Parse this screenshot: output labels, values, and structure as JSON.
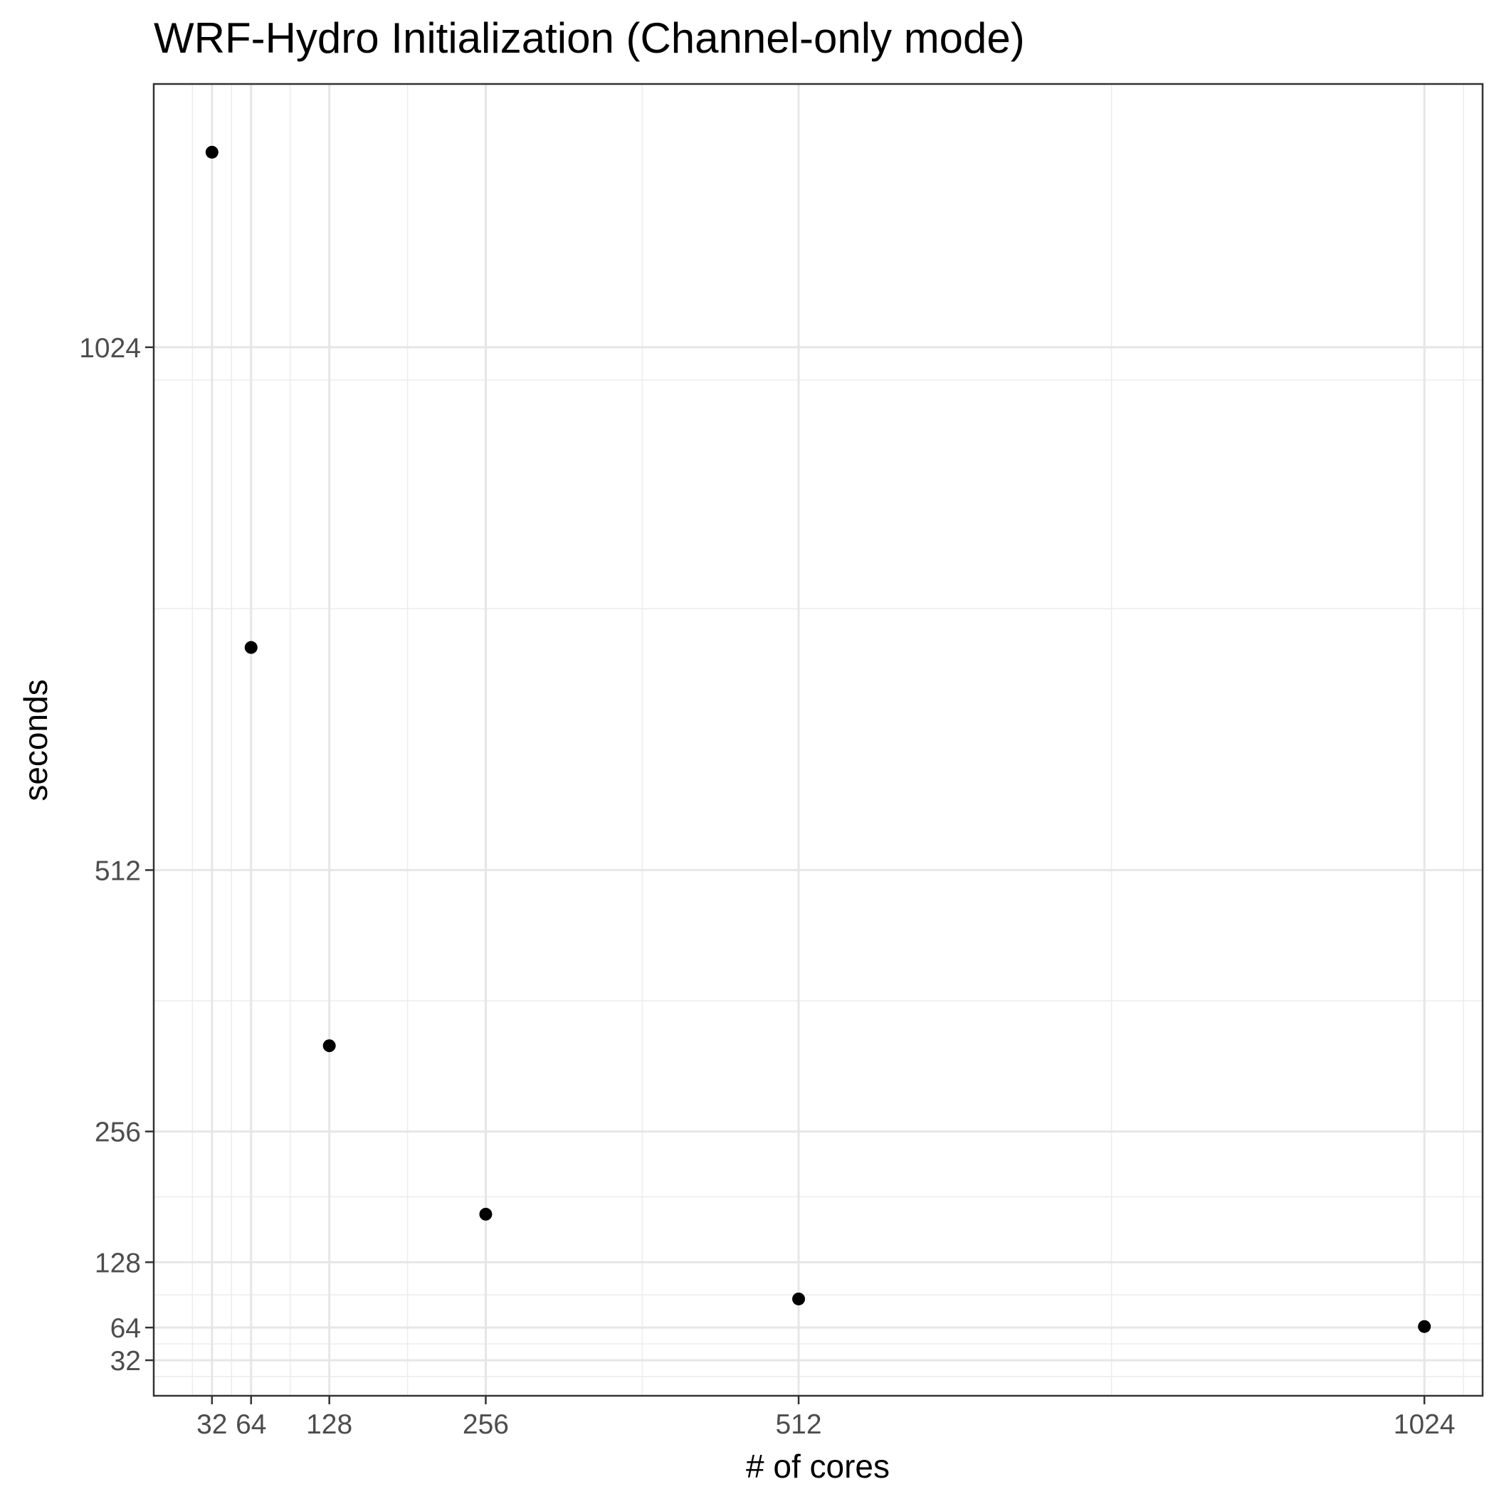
{
  "chart_data": {
    "type": "scatter",
    "title": "WRF-Hydro Initialization (Channel-only mode)",
    "xlabel": "# of cores",
    "ylabel": "seconds",
    "x": [
      32,
      64,
      128,
      256,
      512,
      1024
    ],
    "y": [
      1215,
      730,
      340,
      175,
      92,
      65
    ],
    "x_ticks": [
      32,
      64,
      128,
      256,
      512,
      1024
    ],
    "x_tick_labels": [
      "32",
      "64",
      "128",
      "256",
      "512",
      "1024"
    ],
    "y_ticks": [
      32,
      64,
      128,
      256,
      512,
      1024
    ],
    "y_tick_labels": [
      "32",
      "64",
      "128",
      "256",
      "512",
      "1024"
    ],
    "x_minor_ticks": [
      16,
      48,
      96,
      192,
      384,
      768,
      1056
    ],
    "y_minor_ticks": [
      16,
      48,
      96,
      192,
      384,
      768,
      992
    ],
    "xlim": [
      -15.65,
      1071.65
    ],
    "ylim": [
      -2.8,
      1281.8
    ],
    "grid": true,
    "marker_color": "#000000"
  }
}
